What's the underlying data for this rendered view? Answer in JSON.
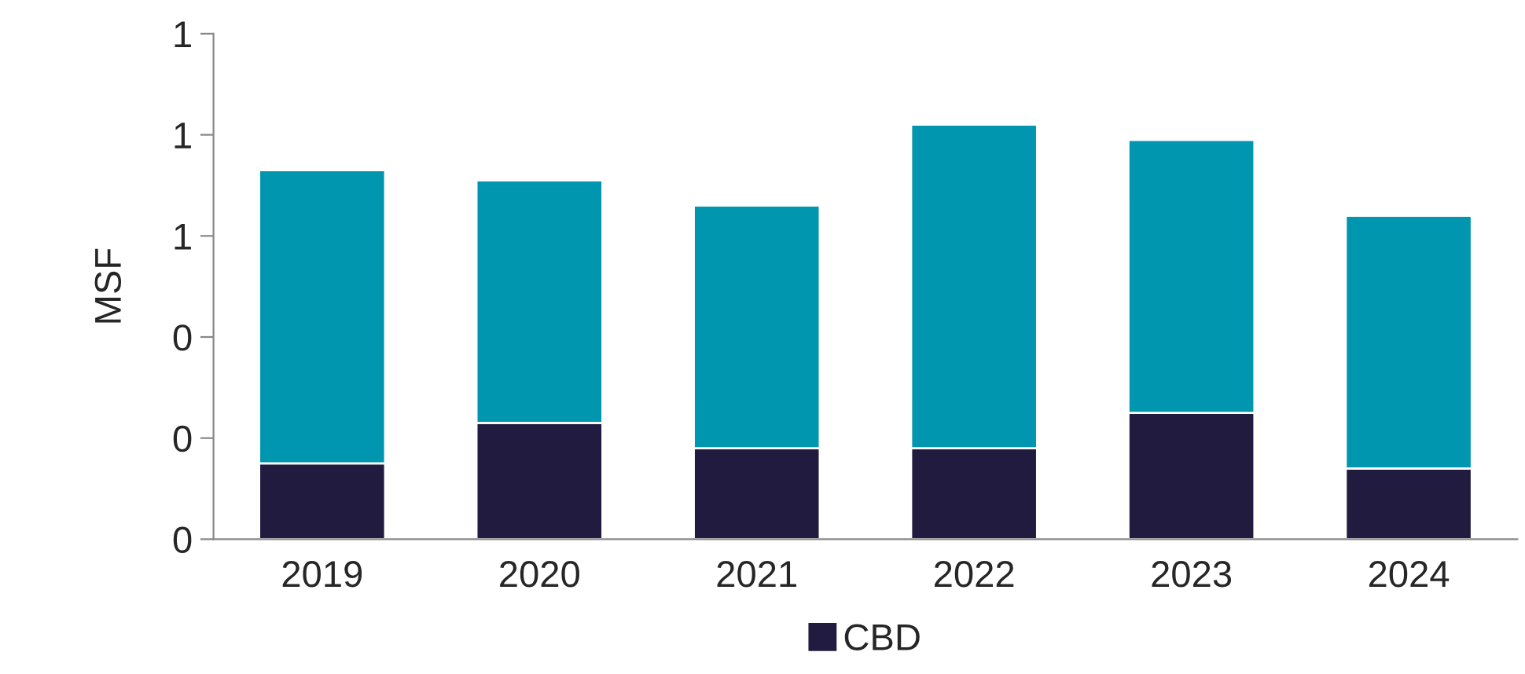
{
  "chart_data": {
    "type": "bar",
    "stacked": true,
    "ylabel": "MSF",
    "categories": [
      "2019",
      "2020",
      "2021",
      "2022",
      "2023",
      "2024"
    ],
    "series": [
      {
        "name": "CBD",
        "color": "#201b3f",
        "values": [
          0.15,
          0.23,
          0.18,
          0.18,
          0.25,
          0.14
        ]
      },
      {
        "color": "#0096b0",
        "values": [
          0.58,
          0.48,
          0.48,
          0.64,
          0.54,
          0.5
        ]
      }
    ],
    "ylim": [
      0,
      1
    ],
    "yticks": [
      0,
      {
        "value": 0.2,
        "label": "0"
      },
      {
        "value": 0.4,
        "label": "0"
      },
      {
        "value": 0.6,
        "label": "1"
      },
      {
        "value": 0.8,
        "label": "1"
      },
      {
        "value": 1.0,
        "label": "1"
      }
    ],
    "legend": "bottom",
    "grid": false
  }
}
